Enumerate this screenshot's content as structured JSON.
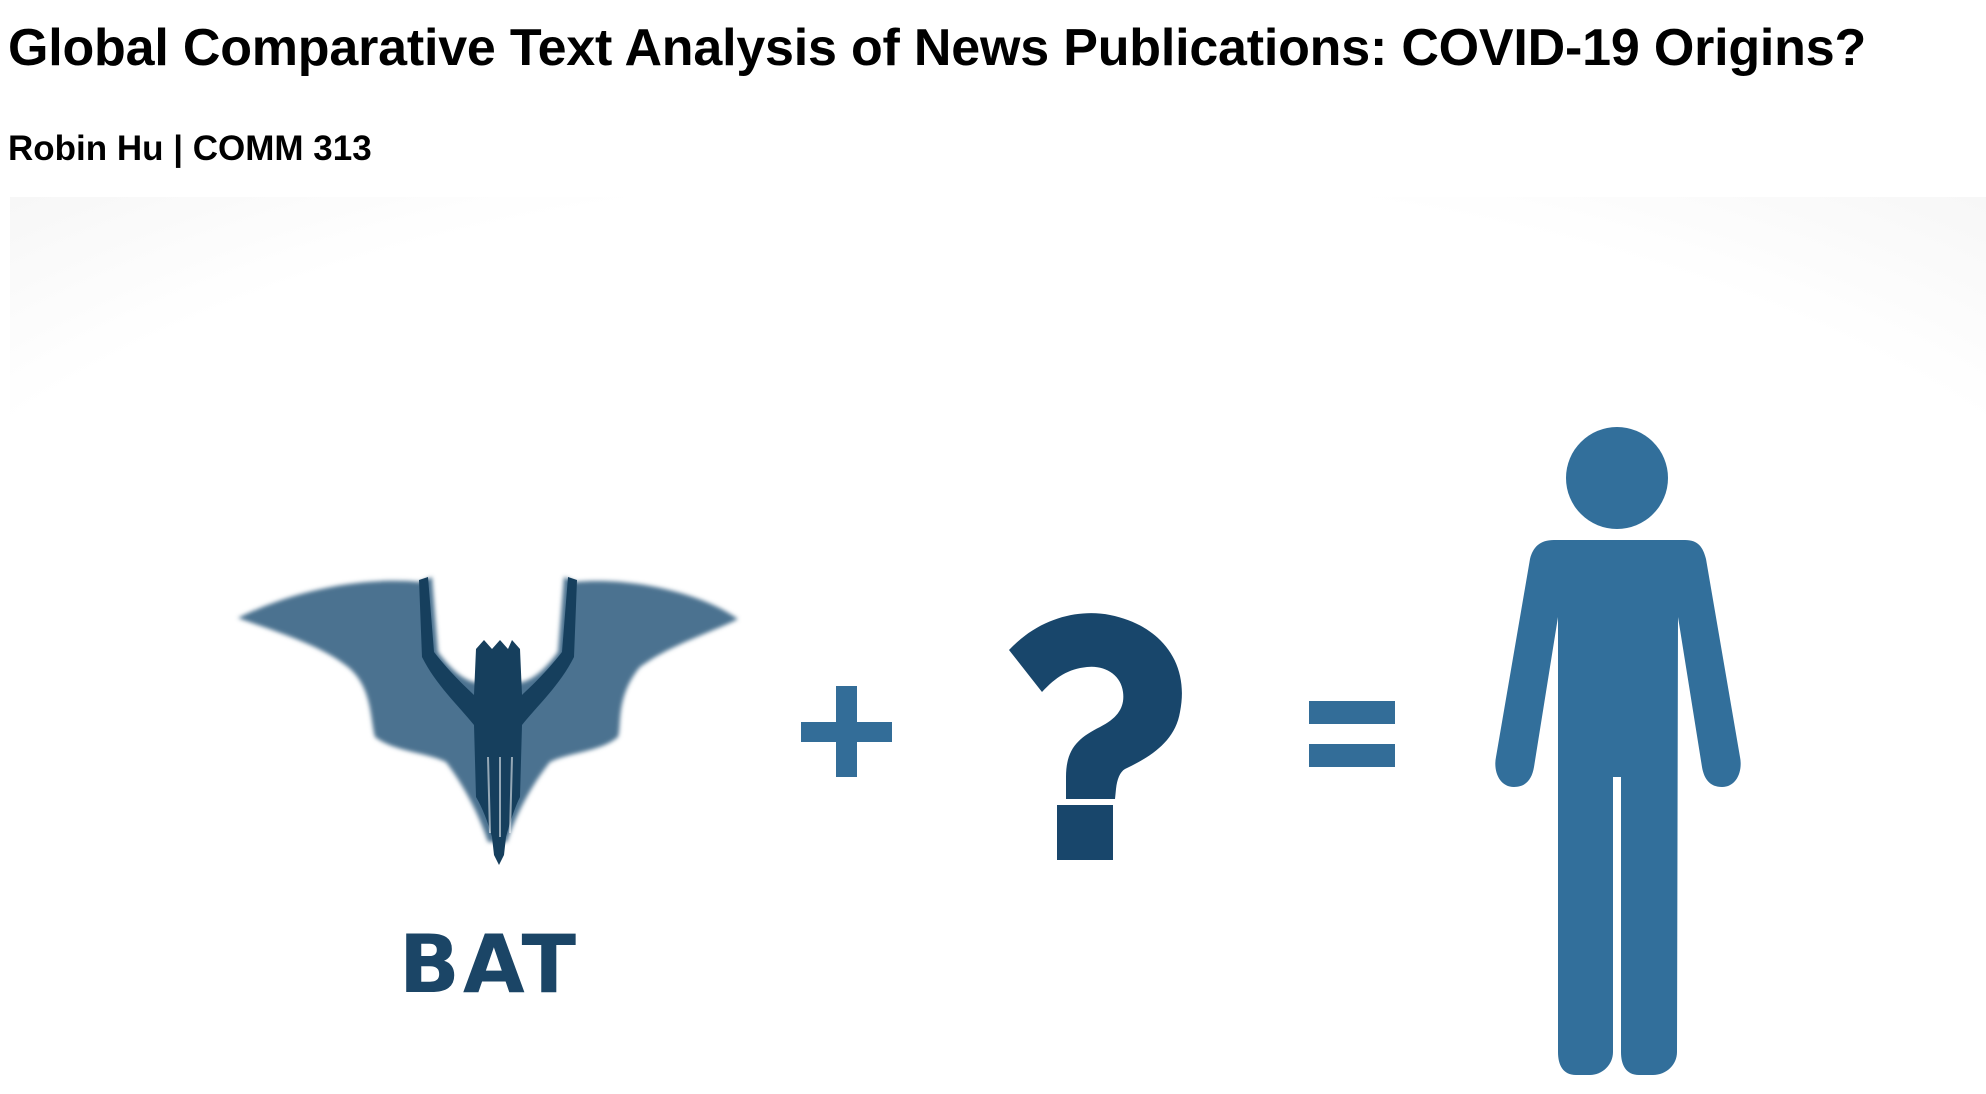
{
  "document": {
    "title": "Global Comparative Text Analysis of News Publications: COVID-19 Origins?",
    "byline": "Robin Hu | COMM 313"
  },
  "hero_image": {
    "bat_label": "BAT",
    "icons": [
      "bat-icon",
      "plus-icon",
      "question-mark-icon",
      "equals-icon",
      "person-icon"
    ],
    "colors": {
      "bat_wing": "#4c7290",
      "bat_body": "#163f5d",
      "operator": "#336d98",
      "question_mark": "#18466b",
      "person": "#326f9b",
      "label": "#1b4566"
    }
  }
}
